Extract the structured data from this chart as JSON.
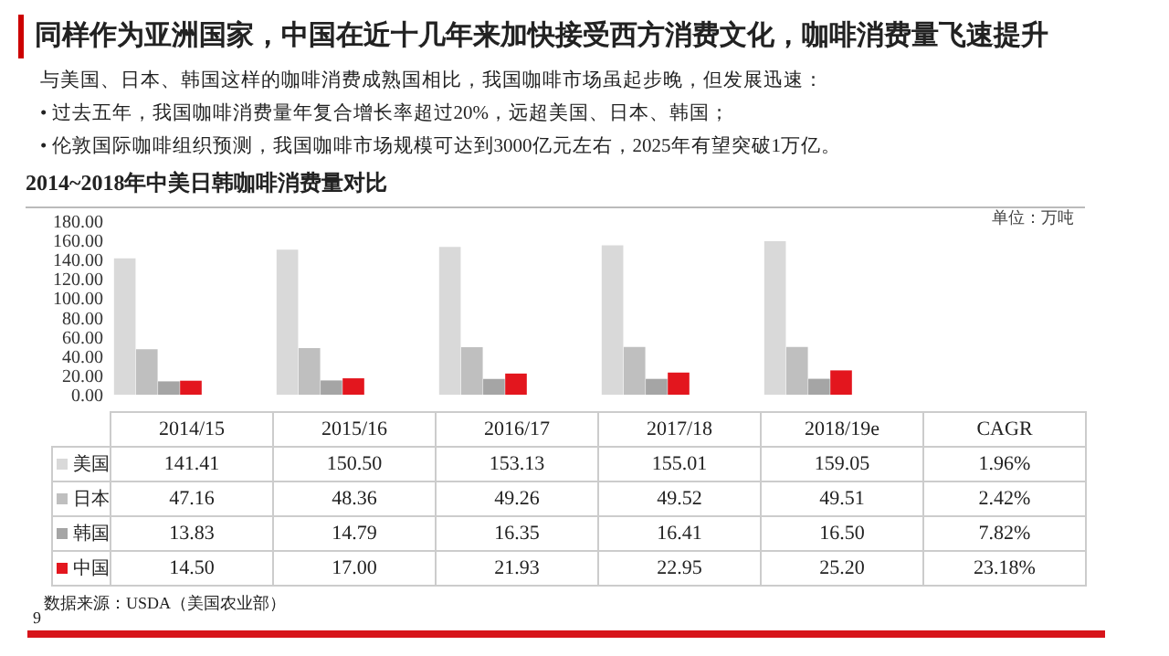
{
  "chart_data": {
    "type": "bar",
    "title": "2014~2018年中美日韩咖啡消费量对比",
    "ylabel": "单位：万吨",
    "categories": [
      "2014/15",
      "2015/16",
      "2016/17",
      "2017/18",
      "2018/19e"
    ],
    "series": [
      {
        "name": "美国",
        "color": "#d9d9d9",
        "values": [
          141.41,
          150.5,
          153.13,
          155.01,
          159.05
        ],
        "value_labels": [
          "141.41",
          "150.50",
          "153.13",
          "155.01",
          "159.05"
        ]
      },
      {
        "name": "日本",
        "color": "#bfbfbf",
        "values": [
          47.16,
          48.36,
          49.26,
          49.52,
          49.51
        ],
        "value_labels": [
          "47.16",
          "48.36",
          "49.26",
          "49.52",
          "49.51"
        ]
      },
      {
        "name": "韩国",
        "color": "#a5a5a5",
        "values": [
          13.83,
          14.79,
          16.35,
          16.41,
          16.5
        ],
        "value_labels": [
          "13.83",
          "14.79",
          "16.35",
          "16.41",
          "16.50"
        ]
      },
      {
        "name": "中国",
        "color": "#e3161e",
        "values": [
          14.5,
          17.0,
          21.93,
          22.95,
          25.2
        ],
        "value_labels": [
          "14.50",
          "17.00",
          "21.93",
          "22.95",
          "25.20"
        ]
      }
    ],
    "ylim": [
      0,
      180
    ],
    "yticks": [
      {
        "value": 0,
        "label": "0.00"
      },
      {
        "value": 20,
        "label": "20.00"
      },
      {
        "value": 40,
        "label": "40.00"
      },
      {
        "value": 60,
        "label": "60.00"
      },
      {
        "value": 80,
        "label": "80.00"
      },
      {
        "value": 100,
        "label": "100.00"
      },
      {
        "value": 120,
        "label": "120.00"
      },
      {
        "value": 140,
        "label": "140.00"
      },
      {
        "value": 160,
        "label": "160.00"
      },
      {
        "value": 180,
        "label": "180.00"
      }
    ],
    "grid": false,
    "legend": "bottom",
    "annotations": [
      "同样作为亚洲国家，中国在近十几年来加快接受西方消费文化，咖啡消费量飞速提升",
      "与美国、日本、韩国这样的咖啡消费成熟国相比，我国咖啡市场虽起步晚，但发展迅速：",
      "• 过去五年，我国咖啡消费量年复合增长率超过20%，远超美国、日本、韩国；",
      "• 伦敦国际咖啡组织预测，我国咖啡市场规模可达到3000亿元左右，2025年有望突破1万亿。",
      "CAGR",
      "1.96%",
      "2.42%",
      "7.82%",
      "23.18%",
      "数据来源：USDA（美国农业部）",
      "9"
    ]
  }
}
